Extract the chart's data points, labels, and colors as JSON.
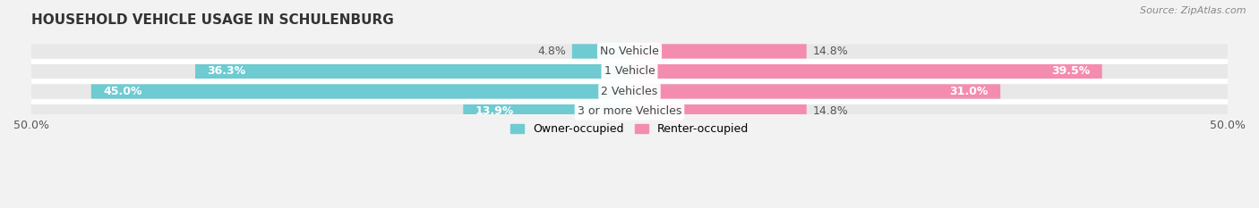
{
  "title": "HOUSEHOLD VEHICLE USAGE IN SCHULENBURG",
  "source": "Source: ZipAtlas.com",
  "categories": [
    "No Vehicle",
    "1 Vehicle",
    "2 Vehicles",
    "3 or more Vehicles"
  ],
  "owner_values": [
    4.8,
    36.3,
    45.0,
    13.9
  ],
  "renter_values": [
    14.8,
    39.5,
    31.0,
    14.8
  ],
  "owner_color": "#6ecbd1",
  "renter_color": "#f48cb0",
  "owner_label": "Owner-occupied",
  "renter_label": "Renter-occupied",
  "xlim": [
    -50,
    50
  ],
  "background_color": "#f2f2f2",
  "row_bg_color": "#e8e8e8",
  "row_sep_color": "#ffffff",
  "title_fontsize": 11,
  "source_fontsize": 8,
  "value_fontsize": 9,
  "category_fontsize": 9,
  "tick_fontsize": 9
}
